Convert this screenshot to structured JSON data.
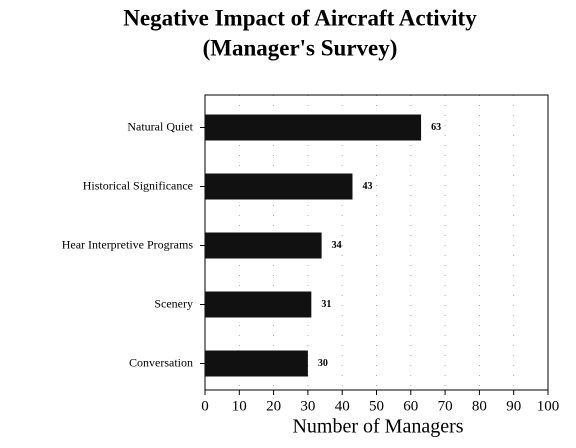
{
  "chart_data": {
    "type": "bar",
    "orientation": "horizontal",
    "title": "Negative Impact of Aircraft Activity",
    "subtitle": "(Manager's Survey)",
    "x_label": "Number of Managers",
    "categories": [
      "Natural Quiet",
      "Historical Significance",
      "Hear Interpretive Programs",
      "Scenery",
      "Conversation"
    ],
    "values": [
      63,
      43,
      34,
      31,
      30
    ],
    "color": "#111111",
    "xlim": [
      0,
      100
    ],
    "xticks": [
      0,
      10,
      20,
      30,
      40,
      50,
      60,
      70,
      80,
      90,
      100
    ],
    "grid": true
  }
}
